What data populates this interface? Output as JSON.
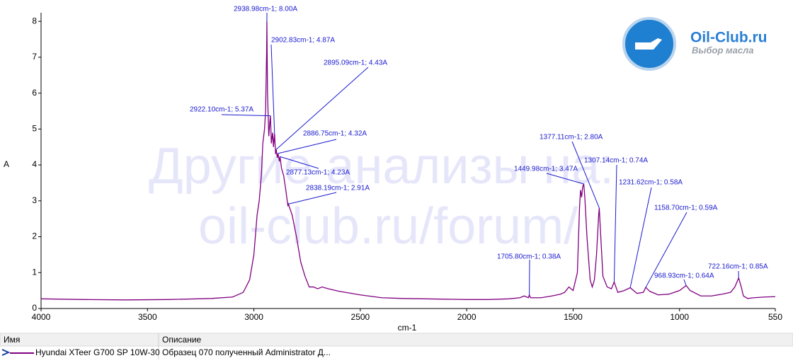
{
  "chart_data": {
    "type": "line",
    "x_label": "cm-1",
    "y_label": "A",
    "xlim": [
      4000,
      550
    ],
    "ylim": [
      0,
      8.2
    ],
    "xticks": [
      4000,
      3500,
      3000,
      2500,
      2000,
      1500,
      1000,
      550
    ],
    "yticks": [
      0,
      1,
      2,
      3,
      4,
      5,
      6,
      7,
      8
    ],
    "x": [
      4000,
      3800,
      3600,
      3400,
      3200,
      3100,
      3050,
      3020,
      3000,
      2985,
      2975,
      2965,
      2958,
      2950,
      2945,
      2940,
      2938.98,
      2936,
      2930,
      2925,
      2922.1,
      2918,
      2912,
      2908,
      2902.83,
      2898,
      2895.09,
      2890,
      2886.75,
      2880,
      2877.13,
      2870,
      2860,
      2850,
      2840,
      2838.19,
      2820,
      2800,
      2780,
      2760,
      2740,
      2720,
      2700,
      2680,
      2650,
      2600,
      2500,
      2400,
      2300,
      2200,
      2100,
      2000,
      1900,
      1800,
      1750,
      1730,
      1710,
      1705.8,
      1700,
      1650,
      1600,
      1560,
      1540,
      1520,
      1500,
      1480,
      1470,
      1465,
      1460,
      1455,
      1449.98,
      1445,
      1435,
      1420,
      1410,
      1400,
      1390,
      1380,
      1377.11,
      1370,
      1360,
      1340,
      1320,
      1307.14,
      1290,
      1260,
      1231.62,
      1200,
      1170,
      1158.7,
      1140,
      1100,
      1050,
      1000,
      968.93,
      950,
      900,
      850,
      800,
      760,
      740,
      722.16,
      710,
      700,
      680,
      650,
      600,
      550
    ],
    "series": [
      {
        "name": "Hyundai XTeer G700 SP 10W-30",
        "color": "#800080",
        "values": [
          0.27,
          0.25,
          0.24,
          0.25,
          0.28,
          0.32,
          0.45,
          0.8,
          1.5,
          2.6,
          3.0,
          3.7,
          4.6,
          5.0,
          5.5,
          7.2,
          8.0,
          6.0,
          4.8,
          5.2,
          5.37,
          4.6,
          4.9,
          4.5,
          4.87,
          4.3,
          4.43,
          4.2,
          4.32,
          4.1,
          4.23,
          3.9,
          3.7,
          3.3,
          2.85,
          2.91,
          2.6,
          2.0,
          1.3,
          0.9,
          0.6,
          0.6,
          0.55,
          0.6,
          0.55,
          0.48,
          0.38,
          0.3,
          0.28,
          0.27,
          0.26,
          0.25,
          0.25,
          0.27,
          0.3,
          0.35,
          0.3,
          0.38,
          0.3,
          0.3,
          0.35,
          0.4,
          0.45,
          0.6,
          0.5,
          1.0,
          2.8,
          3.3,
          3.1,
          3.4,
          3.47,
          3.1,
          2.0,
          0.8,
          0.6,
          0.8,
          1.5,
          2.6,
          2.8,
          2.0,
          0.9,
          0.6,
          0.55,
          0.74,
          0.45,
          0.5,
          0.58,
          0.42,
          0.45,
          0.59,
          0.48,
          0.38,
          0.4,
          0.5,
          0.64,
          0.5,
          0.35,
          0.35,
          0.4,
          0.45,
          0.6,
          0.85,
          0.6,
          0.35,
          0.28,
          0.3,
          0.32,
          0.33
        ]
      }
    ],
    "annotations": [
      {
        "text": "2938.98cm-1; 8.00A",
        "x": 2938.98,
        "y": 8.0
      },
      {
        "text": "2902.83cm-1; 4.87A",
        "x": 2902.83,
        "y": 4.87
      },
      {
        "text": "2895.09cm-1; 4.43A",
        "x": 2895.09,
        "y": 4.43
      },
      {
        "text": "2922.10cm-1; 5.37A",
        "x": 2922.1,
        "y": 5.37
      },
      {
        "text": "2886.75cm-1; 4.32A",
        "x": 2886.75,
        "y": 4.32
      },
      {
        "text": "2877.13cm-1; 4.23A",
        "x": 2877.13,
        "y": 4.23
      },
      {
        "text": "2838.19cm-1; 2.91A",
        "x": 2838.19,
        "y": 2.91
      },
      {
        "text": "1377.11cm-1; 2.80A",
        "x": 1377.11,
        "y": 2.8
      },
      {
        "text": "1449.98cm-1; 3.47A",
        "x": 1449.98,
        "y": 3.47
      },
      {
        "text": "1307.14cm-1; 0.74A",
        "x": 1307.14,
        "y": 0.74
      },
      {
        "text": "1231.62cm-1; 0.58A",
        "x": 1231.62,
        "y": 0.58
      },
      {
        "text": "1158.70cm-1; 0.59A",
        "x": 1158.7,
        "y": 0.59
      },
      {
        "text": "1705.80cm-1; 0.38A",
        "x": 1705.8,
        "y": 0.38
      },
      {
        "text": "968.93cm-1; 0.64A",
        "x": 968.93,
        "y": 0.64
      },
      {
        "text": "722.16cm-1; 0.85A",
        "x": 722.16,
        "y": 0.85
      }
    ]
  },
  "watermark": [
    "Другие анализы на:",
    "oil-club.ru/forum/"
  ],
  "logo": {
    "title": "Oil-Club.ru",
    "subtitle": "Выбор масла"
  },
  "legend_table": {
    "headers": [
      "Имя",
      "Описание"
    ],
    "description": "Образец 070 полученный Administrator Д..."
  }
}
